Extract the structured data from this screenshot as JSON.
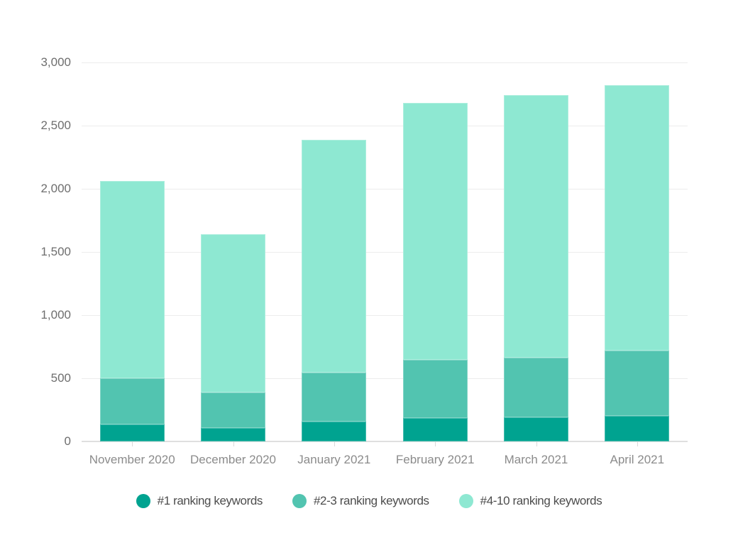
{
  "chart_data": {
    "type": "bar",
    "stacked": true,
    "title": "",
    "xlabel": "",
    "ylabel": "",
    "categories": [
      "November 2020",
      "December 2020",
      "January 2021",
      "February 2021",
      "March 2021",
      "April 2021"
    ],
    "series": [
      {
        "name": "#1 ranking keywords",
        "color": "#00a390",
        "values": [
          135,
          105,
          155,
          185,
          190,
          200
        ]
      },
      {
        "name": "#2-3 ranking keywords",
        "color": "#52c4b0",
        "values": [
          365,
          285,
          390,
          460,
          475,
          520
        ]
      },
      {
        "name": "#4-10 ranking keywords",
        "color": "#8ee8d2",
        "values": [
          1560,
          1250,
          1845,
          2035,
          2075,
          2100
        ]
      }
    ],
    "totals": [
      2060,
      1640,
      2390,
      2680,
      2740,
      2820
    ],
    "ylim": [
      0,
      3000
    ],
    "yticks": [
      0,
      500,
      1000,
      1500,
      2000,
      2500,
      3000
    ],
    "ytick_labels": [
      "0",
      "500",
      "1,000",
      "1,500",
      "2,000",
      "2,500",
      "3,000"
    ],
    "grid": true,
    "legend_position": "bottom"
  },
  "legend": {
    "items": [
      {
        "label": "#1 ranking keywords",
        "color": "#00a390"
      },
      {
        "label": "#2-3 ranking keywords",
        "color": "#52c4b0"
      },
      {
        "label": "#4-10 ranking keywords",
        "color": "#8ee8d2"
      }
    ]
  }
}
